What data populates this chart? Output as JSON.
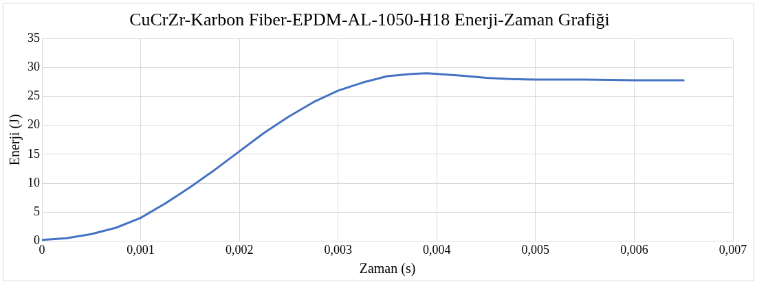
{
  "chart_data": {
    "type": "line",
    "title": "CuCrZr-Karbon Fiber-EPDM-AL-1050-H18 Enerji-Zaman Grafiği",
    "xlabel": "Zaman (s)",
    "ylabel": "Enerji (J)",
    "x": [
      0,
      0.00025,
      0.0005,
      0.00075,
      0.001,
      0.00125,
      0.0015,
      0.00175,
      0.002,
      0.00225,
      0.0025,
      0.00275,
      0.003,
      0.00325,
      0.0035,
      0.00375,
      0.0039,
      0.004,
      0.00425,
      0.0045,
      0.00475,
      0.005,
      0.0055,
      0.006,
      0.0065
    ],
    "series": [
      {
        "color": "#4472c4",
        "values": [
          0.2,
          0.5,
          1.2,
          2.3,
          4,
          6.5,
          9.3,
          12.3,
          15.5,
          18.7,
          21.5,
          24,
          26,
          27.4,
          28.5,
          28.9,
          29,
          28.9,
          28.6,
          28.2,
          28,
          27.9,
          27.9,
          27.8,
          27.8
        ]
      }
    ],
    "xlim": [
      0,
      0.007
    ],
    "ylim": [
      0,
      35
    ],
    "xticks": [
      0,
      {
        "value": 0.001,
        "label": "0,001"
      },
      {
        "value": 0.002,
        "label": "0,002"
      },
      {
        "value": 0.003,
        "label": "0,003"
      },
      {
        "value": 0.004,
        "label": "0,004"
      },
      {
        "value": 0.005,
        "label": "0,005"
      },
      {
        "value": 0.006,
        "label": "0,006"
      },
      {
        "value": 0.007,
        "label": "0,007"
      }
    ],
    "yticks": [
      0,
      5,
      10,
      15,
      20,
      25,
      30,
      35
    ],
    "grid": true,
    "legend": false,
    "marker": "none",
    "line_style": "solid"
  }
}
